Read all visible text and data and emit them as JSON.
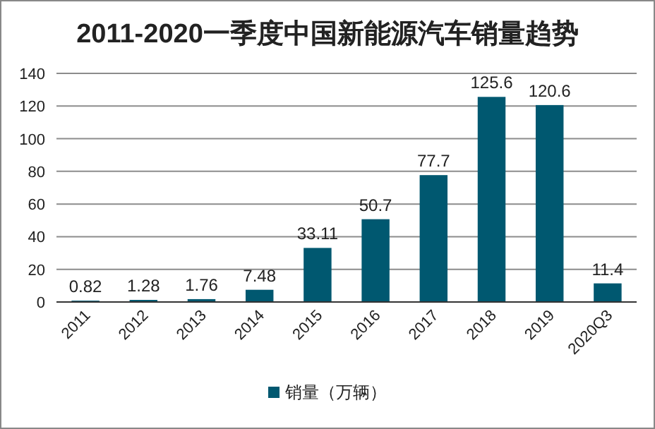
{
  "chart_data": {
    "type": "bar",
    "title": "2011-2020一季度中国新能源汽车销量趋势",
    "categories": [
      "2011",
      "2012",
      "2013",
      "2014",
      "2015",
      "2016",
      "2017",
      "2018",
      "2019",
      "2020Q3"
    ],
    "series": [
      {
        "name": "销量（万辆）",
        "color": "#005870",
        "values": [
          0.82,
          1.28,
          1.76,
          7.48,
          33.11,
          50.7,
          77.7,
          125.6,
          120.6,
          11.4
        ]
      }
    ],
    "ylim": [
      0,
      140
    ],
    "yticks": [
      0,
      20,
      40,
      60,
      80,
      100,
      120,
      140
    ],
    "grid": "y",
    "data_labels": true,
    "legend": "bottom"
  }
}
